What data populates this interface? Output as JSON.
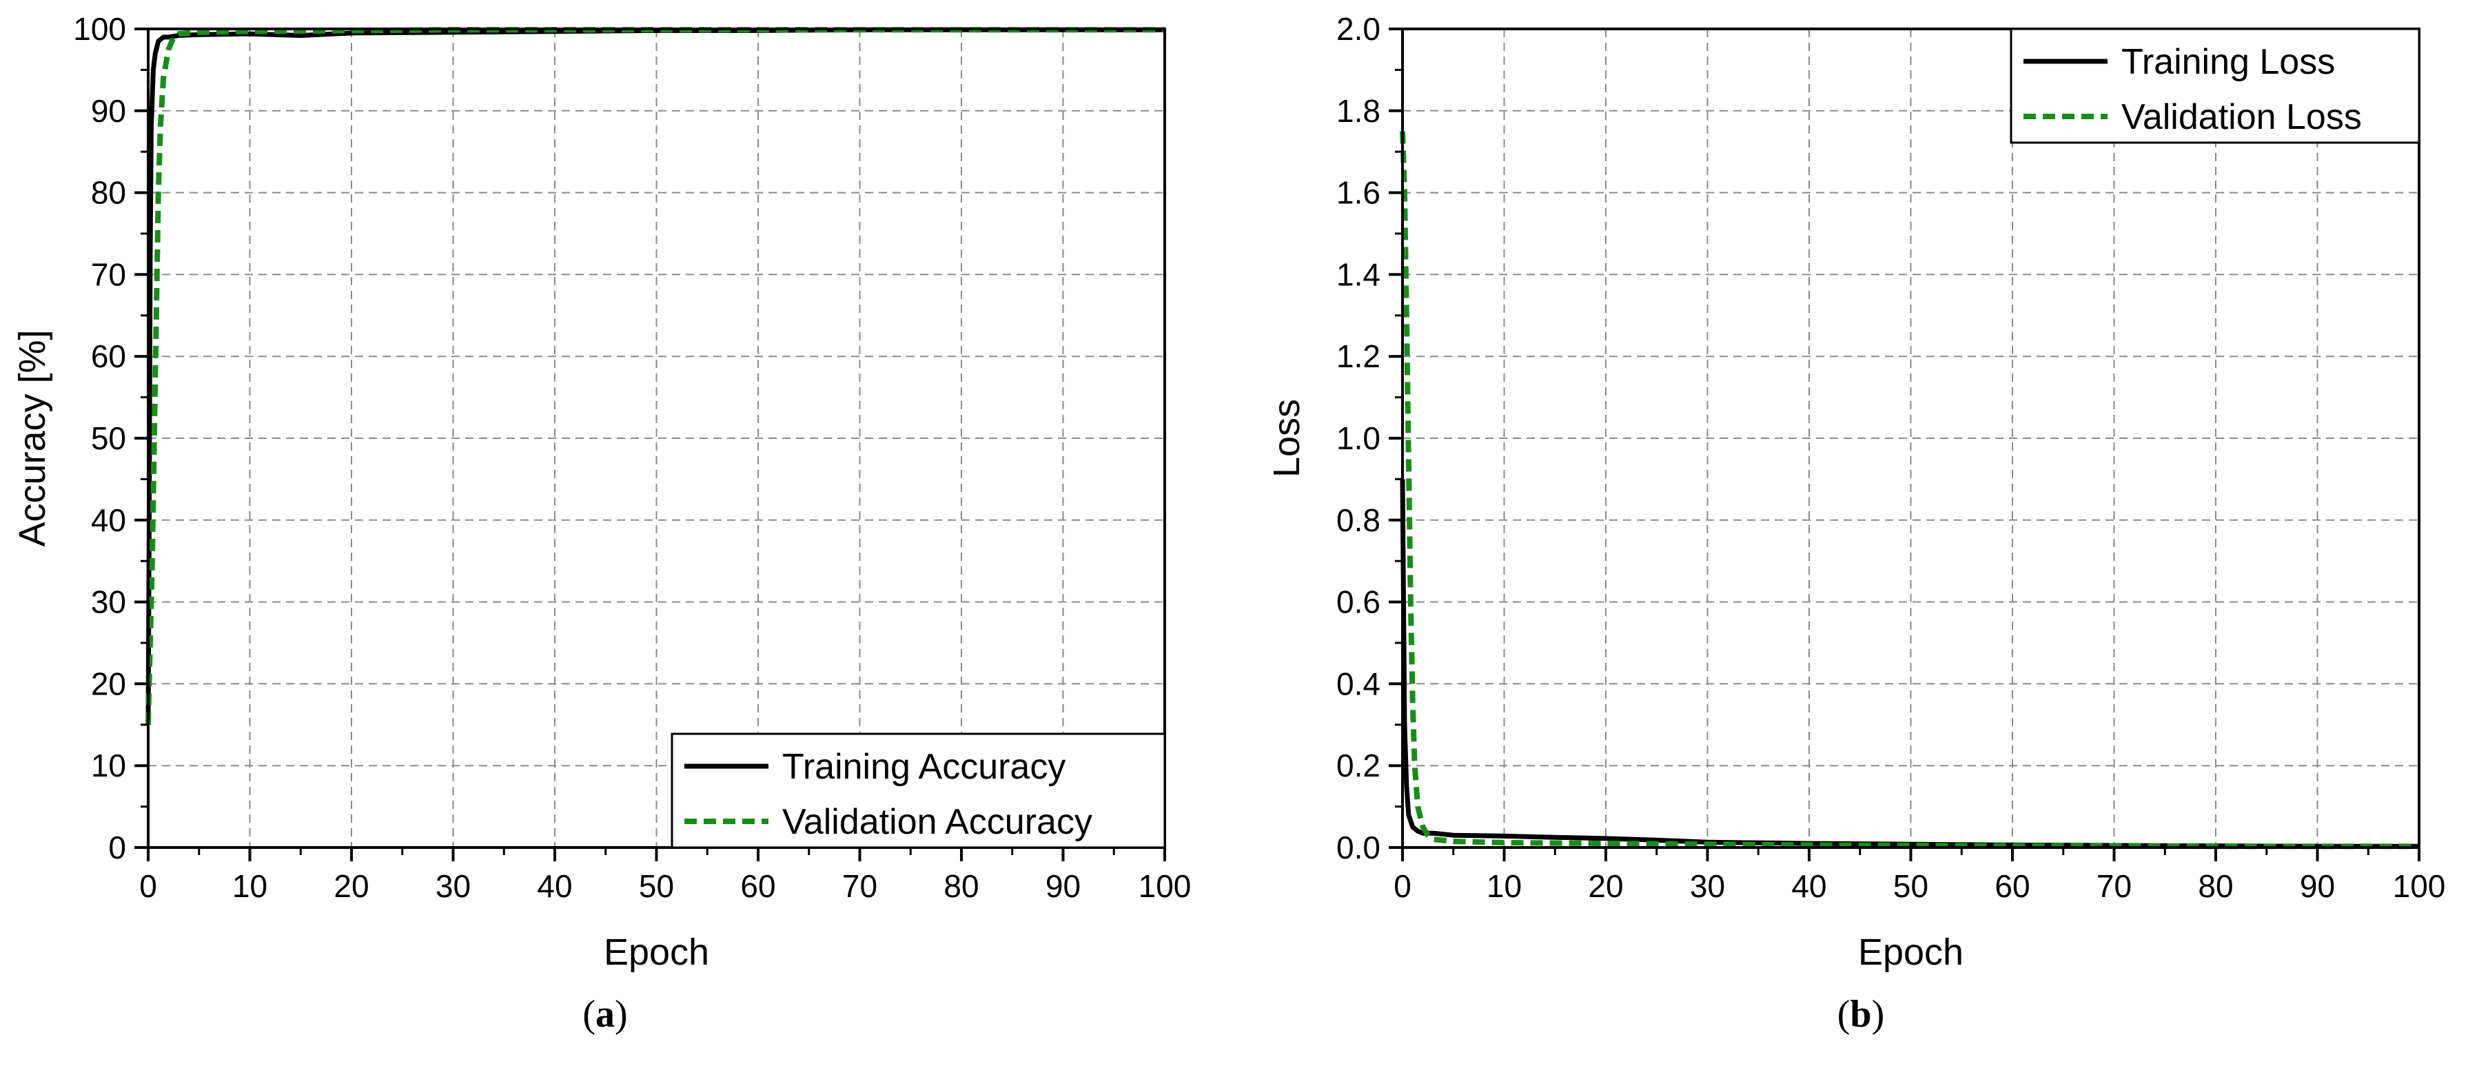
{
  "chart_data": [
    {
      "type": "line",
      "panel_label": "a",
      "xlabel": "Epoch",
      "ylabel": "Accuracy [%]",
      "xlim": [
        0,
        100
      ],
      "ylim": [
        0,
        100
      ],
      "x_ticks": [
        0,
        10,
        20,
        30,
        40,
        50,
        60,
        70,
        80,
        90,
        100
      ],
      "y_ticks": [
        0,
        10,
        20,
        30,
        40,
        50,
        60,
        70,
        80,
        90,
        100
      ],
      "x_tick_labels": [
        "0",
        "10",
        "20",
        "30",
        "40",
        "50",
        "60",
        "70",
        "80",
        "90",
        "100"
      ],
      "y_tick_labels": [
        "0",
        "10",
        "20",
        "30",
        "40",
        "50",
        "60",
        "70",
        "80",
        "90",
        "100"
      ],
      "grid": true,
      "legend_position": "bottom-right",
      "series": [
        {
          "name": "Training Accuracy",
          "color": "#000000",
          "style": "solid",
          "x": [
            0,
            0.1,
            0.2,
            0.3,
            0.5,
            0.7,
            1,
            1.5,
            2,
            3,
            5,
            10,
            15,
            20,
            30,
            40,
            50,
            60,
            70,
            80,
            90,
            100
          ],
          "y": [
            15,
            40,
            72,
            88,
            95,
            97,
            98.5,
            99,
            99,
            99.2,
            99.3,
            99.4,
            99.2,
            99.5,
            99.6,
            99.7,
            99.8,
            99.8,
            99.9,
            99.9,
            99.9,
            99.9
          ]
        },
        {
          "name": "Validation Accuracy",
          "color": "#1a8c1a",
          "style": "dashed",
          "x": [
            0,
            0.2,
            0.4,
            0.6,
            0.8,
            1,
            1.2,
            1.5,
            2,
            2.5,
            3,
            5,
            10,
            20,
            30,
            40,
            50,
            60,
            70,
            80,
            90,
            100
          ],
          "y": [
            15,
            25,
            35,
            50,
            65,
            80,
            88,
            94,
            97.5,
            99,
            99.4,
            99.6,
            99.7,
            99.8,
            99.9,
            99.9,
            99.9,
            99.9,
            99.9,
            99.9,
            99.9,
            99.9
          ]
        }
      ]
    },
    {
      "type": "line",
      "panel_label": "b",
      "xlabel": "Epoch",
      "ylabel": "Loss",
      "xlim": [
        0,
        100
      ],
      "ylim": [
        0,
        2.0
      ],
      "x_ticks": [
        0,
        10,
        20,
        30,
        40,
        50,
        60,
        70,
        80,
        90,
        100
      ],
      "y_ticks": [
        0,
        0.2,
        0.4,
        0.6,
        0.8,
        1.0,
        1.2,
        1.4,
        1.6,
        1.8,
        2.0
      ],
      "x_tick_labels": [
        "0",
        "10",
        "20",
        "30",
        "40",
        "50",
        "60",
        "70",
        "80",
        "90",
        "100"
      ],
      "y_tick_labels": [
        "0.0",
        "0.2",
        "0.4",
        "0.6",
        "0.8",
        "1.0",
        "1.2",
        "1.4",
        "1.6",
        "1.8",
        "2.0"
      ],
      "grid": true,
      "legend_position": "top-right",
      "series": [
        {
          "name": "Training Loss",
          "color": "#000000",
          "style": "solid",
          "x": [
            0,
            0.1,
            0.2,
            0.4,
            0.6,
            1,
            1.5,
            2,
            3,
            5,
            10,
            15,
            20,
            25,
            30,
            40,
            50,
            60,
            70,
            80,
            90,
            100
          ],
          "y": [
            0.9,
            0.6,
            0.3,
            0.15,
            0.08,
            0.05,
            0.04,
            0.035,
            0.035,
            0.03,
            0.028,
            0.025,
            0.022,
            0.018,
            0.013,
            0.01,
            0.008,
            0.006,
            0.005,
            0.004,
            0.003,
            0.003
          ]
        },
        {
          "name": "Validation Loss",
          "color": "#1a8c1a",
          "style": "dashed",
          "x": [
            0,
            0.2,
            0.4,
            0.6,
            0.8,
            1,
            1.2,
            1.5,
            2,
            2.5,
            3,
            5,
            10,
            20,
            30,
            40,
            50,
            60,
            70,
            80,
            90,
            100
          ],
          "y": [
            1.75,
            1.6,
            1.3,
            0.95,
            0.6,
            0.35,
            0.2,
            0.1,
            0.05,
            0.03,
            0.02,
            0.015,
            0.012,
            0.01,
            0.008,
            0.006,
            0.005,
            0.004,
            0.004,
            0.003,
            0.003,
            0.003
          ]
        }
      ]
    }
  ]
}
